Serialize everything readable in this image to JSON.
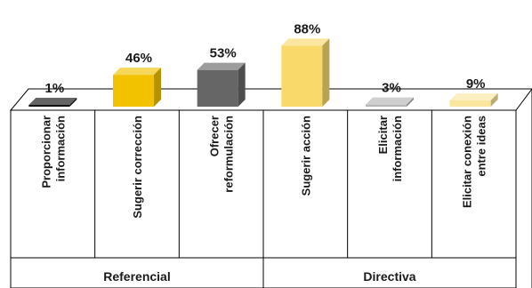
{
  "chart_data": {
    "type": "bar",
    "style": "3d-columns",
    "ylim": [
      0,
      100
    ],
    "grid": false,
    "categories": [
      {
        "lines": [
          "Proporcionar",
          "información"
        ]
      },
      {
        "lines": [
          "Sugerir corrección"
        ]
      },
      {
        "lines": [
          "Ofrecer",
          "reformulación"
        ]
      },
      {
        "lines": [
          "Sugerir acción"
        ]
      },
      {
        "lines": [
          "Elicitar",
          "información"
        ]
      },
      {
        "lines": [
          "Elicitar conexión",
          "entre ideas"
        ]
      }
    ],
    "values": [
      1,
      46,
      53,
      88,
      3,
      9
    ],
    "value_labels": [
      "1%",
      "46%",
      "53%",
      "88%",
      "3%",
      "9%"
    ],
    "colors": [
      "#111111",
      "#f2c200",
      "#666666",
      "#f8d969",
      "#b5b5b5",
      "#fbe6a0"
    ],
    "groups": [
      {
        "label": "Referencial",
        "categories": [
          0,
          1,
          2
        ]
      },
      {
        "label": "Directiva",
        "categories": [
          3,
          4,
          5
        ]
      }
    ]
  }
}
